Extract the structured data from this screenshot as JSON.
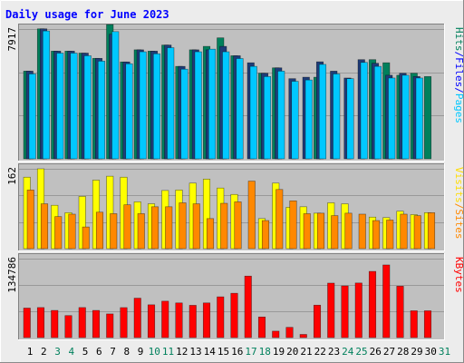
{
  "title": "Daily usage for June 2023",
  "chart_data": {
    "type": "bar",
    "title": "Daily usage for June 2023",
    "categories": [
      "1",
      "2",
      "3",
      "4",
      "5",
      "6",
      "7",
      "8",
      "9",
      "10",
      "11",
      "12",
      "13",
      "14",
      "15",
      "16",
      "17",
      "18",
      "19",
      "20",
      "21",
      "22",
      "23",
      "24",
      "25",
      "26",
      "27",
      "28",
      "29",
      "30",
      "31"
    ],
    "weekend_days": [
      "3",
      "4",
      "10",
      "11",
      "17",
      "18",
      "24",
      "25",
      "31"
    ],
    "panels": [
      {
        "id": "top",
        "y_max_label": "7917",
        "ylim": [
          0,
          7917
        ],
        "labels": [
          {
            "text": "Hits",
            "color": "#00805c"
          },
          {
            "text": "/",
            "color": "#0000ff"
          },
          {
            "text": "Files",
            "color": "#0000ff"
          },
          {
            "text": "/",
            "color": "#0000ff"
          },
          {
            "text": "Pages",
            "color": "#00c8ff"
          }
        ],
        "series": [
          {
            "color": "#00805c",
            "values": [
              5350,
              7930,
              6570,
              6570,
              6450,
              6130,
              8190,
              5910,
              6650,
              6570,
              6940,
              5640,
              6650,
              6860,
              7380,
              6290,
              0,
              5220,
              5550,
              0,
              0,
              4980,
              0,
              0,
              0,
              6050,
              5860,
              5100,
              5220,
              5020,
              0
            ]
          },
          {
            "color": "#1e3c78",
            "values": [
              5350,
              7930,
              6570,
              6570,
              6450,
              6130,
              7600,
              5910,
              6650,
              6570,
              6940,
              5640,
              6650,
              6650,
              6860,
              6290,
              5860,
              5220,
              5550,
              4890,
              4980,
              5920,
              5350,
              4930,
              6050,
              5830,
              5100,
              5220,
              5020,
              0,
              0
            ]
          },
          {
            "color": "#00c8ff",
            "values": [
              5180,
              7800,
              6450,
              6450,
              6290,
              5960,
              7760,
              5800,
              6530,
              6410,
              6780,
              5470,
              6530,
              6690,
              6530,
              6120,
              5640,
              5020,
              5350,
              4730,
              4810,
              5760,
              5180,
              4890,
              5880,
              5640,
              4930,
              5100,
              4930,
              0,
              0
            ]
          }
        ]
      },
      {
        "id": "middle",
        "y_max_label": "162",
        "ylim": [
          0,
          162
        ],
        "labels": [
          {
            "text": "Visits",
            "color": "#ffdc00"
          },
          {
            "text": "/",
            "color": "#ff8800"
          },
          {
            "text": "Sites",
            "color": "#ff8800"
          }
        ],
        "series": [
          {
            "color": "#ffff00",
            "values": [
              145,
              162,
              88,
              73,
              106,
              139,
              147,
              145,
              95,
              91,
              118,
              119,
              133,
              141,
              123,
              110,
              0,
              61,
              133,
              84,
              85,
              72,
              93,
              91,
              0,
              64,
              63,
              76,
              69,
              73,
              0
            ]
          },
          {
            "color": "#ff8800",
            "values": [
              119,
              91,
              65,
              70,
              44,
              74,
              71,
              89,
              71,
              85,
              85,
              93,
              91,
              61,
              92,
              95,
              137,
              57,
              120,
              97,
              71,
              72,
              67,
              72,
              70,
              57,
              58,
              70,
              67,
              73,
              0
            ]
          }
        ]
      },
      {
        "id": "bottom",
        "y_max_label": "134786",
        "ylim": [
          0,
          134786
        ],
        "labels": [
          {
            "text": "KBytes",
            "color": "#ff0000"
          }
        ],
        "series": [
          {
            "color": "#ff0000",
            "values": [
              50400,
              51300,
              46400,
              37600,
              51300,
              46400,
              40400,
              51200,
              67300,
              56000,
              62200,
              59200,
              55100,
              59200,
              69600,
              75700,
              105000,
              35200,
              11000,
              17500,
              5400,
              55400,
              93000,
              88300,
              93200,
              113000,
              124000,
              87800,
              45800,
              45800,
              0
            ]
          }
        ]
      }
    ]
  }
}
